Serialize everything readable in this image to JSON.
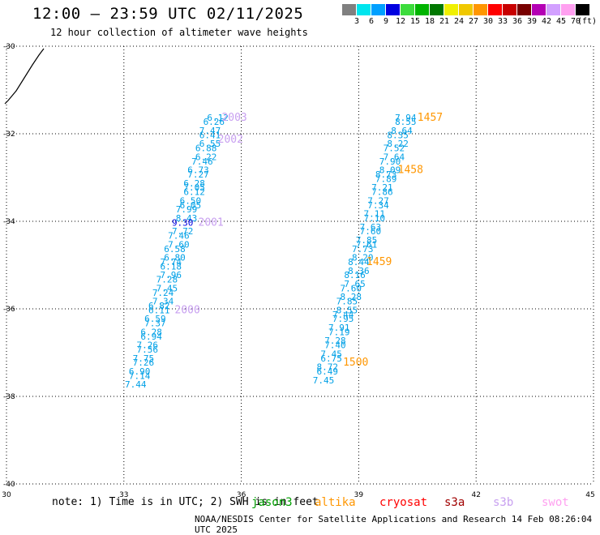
{
  "header": {
    "title": "12:00 – 23:59 UTC 02/11/2025",
    "subtitle": "12 hour collection of altimeter wave heights"
  },
  "scale": {
    "labels": [
      "3",
      "6",
      "9",
      "12",
      "15",
      "18",
      "21",
      "24",
      "27",
      "30",
      "33",
      "36",
      "39",
      "42",
      "45",
      "70"
    ],
    "unit": "(ft)",
    "colors": [
      "#808080",
      "#00e5ee",
      "#00a0ff",
      "#0000e0",
      "#3cdc3c",
      "#00b400",
      "#007800",
      "#f0f000",
      "#f0c800",
      "#ff9600",
      "#ff0000",
      "#c80000",
      "#780000",
      "#b400b4",
      "#d2a0ff",
      "#ffa0f0",
      "#000000"
    ]
  },
  "map": {
    "x_labels": [
      "30",
      "33",
      "36",
      "39",
      "42",
      "45"
    ],
    "y_labels": [
      "-30",
      "-32",
      "-34",
      "-36",
      "-38",
      "-40"
    ],
    "lon_range": [
      30,
      45
    ],
    "lat_range": [
      -40,
      -30
    ]
  },
  "chart_data": {
    "type": "scatter",
    "track_west": {
      "color": "#00a0e6",
      "points": [
        {
          "lon": 35.4,
          "lat": -31.7,
          "value": "6.12"
        },
        {
          "lon": 35.3,
          "lat": -31.8,
          "value": "6.26"
        },
        {
          "lon": 35.2,
          "lat": -32.0,
          "value": "7.47"
        },
        {
          "lon": 35.2,
          "lat": -32.1,
          "value": "6.41"
        },
        {
          "lon": 35.2,
          "lat": -32.3,
          "value": "6.55"
        },
        {
          "lon": 35.1,
          "lat": -32.4,
          "value": "6.88"
        },
        {
          "lon": 35.1,
          "lat": -32.6,
          "value": "6.22"
        },
        {
          "lon": 35.0,
          "lat": -32.7,
          "value": "7.46"
        },
        {
          "lon": 34.9,
          "lat": -32.9,
          "value": "6.73"
        },
        {
          "lon": 34.9,
          "lat": -33.0,
          "value": "7.27"
        },
        {
          "lon": 34.8,
          "lat": -33.2,
          "value": "6.28"
        },
        {
          "lon": 34.8,
          "lat": -33.3,
          "value": "7.05"
        },
        {
          "lon": 34.8,
          "lat": -33.4,
          "value": "6.12"
        },
        {
          "lon": 34.7,
          "lat": -33.6,
          "value": "6.50"
        },
        {
          "lon": 34.7,
          "lat": -33.7,
          "value": "6.05"
        },
        {
          "lon": 34.6,
          "lat": -33.8,
          "value": "7.99"
        },
        {
          "lon": 34.6,
          "lat": -34.0,
          "value": "8.43"
        },
        {
          "lon": 34.5,
          "lat": -34.1,
          "value": "9.30"
        },
        {
          "lon": 34.5,
          "lat": -34.3,
          "value": "7.72"
        },
        {
          "lon": 34.4,
          "lat": -34.4,
          "value": "7.46"
        },
        {
          "lon": 34.4,
          "lat": -34.6,
          "value": "7.60"
        },
        {
          "lon": 34.3,
          "lat": -34.7,
          "value": "6.58"
        },
        {
          "lon": 34.3,
          "lat": -34.9,
          "value": "6.80"
        },
        {
          "lon": 34.2,
          "lat": -35.0,
          "value": "7.74"
        },
        {
          "lon": 34.2,
          "lat": -35.1,
          "value": "6.18"
        },
        {
          "lon": 34.2,
          "lat": -35.3,
          "value": "7.96"
        },
        {
          "lon": 34.1,
          "lat": -35.4,
          "value": "7.28"
        },
        {
          "lon": 34.1,
          "lat": -35.6,
          "value": "7.45"
        },
        {
          "lon": 34.0,
          "lat": -35.7,
          "value": "7.24"
        },
        {
          "lon": 34.0,
          "lat": -35.9,
          "value": "7.34"
        },
        {
          "lon": 33.9,
          "lat": -36.0,
          "value": "6.82"
        },
        {
          "lon": 33.9,
          "lat": -36.1,
          "value": "6.11"
        },
        {
          "lon": 33.8,
          "lat": -36.3,
          "value": "6.59"
        },
        {
          "lon": 33.8,
          "lat": -36.4,
          "value": "7.37"
        },
        {
          "lon": 33.7,
          "lat": -36.6,
          "value": "6.28"
        },
        {
          "lon": 33.7,
          "lat": -36.7,
          "value": "6.94"
        },
        {
          "lon": 33.6,
          "lat": -36.9,
          "value": "7.26"
        },
        {
          "lon": 33.6,
          "lat": -37.0,
          "value": "7.56"
        },
        {
          "lon": 33.5,
          "lat": -37.2,
          "value": "7.75"
        },
        {
          "lon": 33.5,
          "lat": -37.3,
          "value": "7.26"
        },
        {
          "lon": 33.4,
          "lat": -37.5,
          "value": "6.90"
        },
        {
          "lon": 33.4,
          "lat": -37.6,
          "value": "7.14"
        },
        {
          "lon": 33.3,
          "lat": -37.8,
          "value": "7.44"
        }
      ]
    },
    "track_east": {
      "color": "#00a0e6",
      "points": [
        {
          "lon": 40.2,
          "lat": -31.7,
          "value": "7.94"
        },
        {
          "lon": 40.2,
          "lat": -31.8,
          "value": "8.55"
        },
        {
          "lon": 40.1,
          "lat": -32.0,
          "value": "8.64"
        },
        {
          "lon": 40.0,
          "lat": -32.1,
          "value": "8.35"
        },
        {
          "lon": 40.0,
          "lat": -32.3,
          "value": "8.22"
        },
        {
          "lon": 39.9,
          "lat": -32.4,
          "value": "7.52"
        },
        {
          "lon": 39.9,
          "lat": -32.6,
          "value": "7.64"
        },
        {
          "lon": 39.8,
          "lat": -32.7,
          "value": "7.90"
        },
        {
          "lon": 39.8,
          "lat": -32.9,
          "value": "8.09"
        },
        {
          "lon": 39.7,
          "lat": -33.0,
          "value": "8.73"
        },
        {
          "lon": 39.7,
          "lat": -33.1,
          "value": "7.89"
        },
        {
          "lon": 39.6,
          "lat": -33.3,
          "value": "7.21"
        },
        {
          "lon": 39.6,
          "lat": -33.4,
          "value": "7.86"
        },
        {
          "lon": 39.5,
          "lat": -33.6,
          "value": "7.27"
        },
        {
          "lon": 39.5,
          "lat": -33.7,
          "value": "7.34"
        },
        {
          "lon": 39.4,
          "lat": -33.9,
          "value": "7.11"
        },
        {
          "lon": 39.4,
          "lat": -34.0,
          "value": "7.10"
        },
        {
          "lon": 39.3,
          "lat": -34.2,
          "value": "7.63"
        },
        {
          "lon": 39.3,
          "lat": -34.3,
          "value": "7.60"
        },
        {
          "lon": 39.2,
          "lat": -34.5,
          "value": "7.85"
        },
        {
          "lon": 39.2,
          "lat": -34.6,
          "value": "7.61"
        },
        {
          "lon": 39.1,
          "lat": -34.7,
          "value": "7.73"
        },
        {
          "lon": 39.1,
          "lat": -34.9,
          "value": "8.20"
        },
        {
          "lon": 39.0,
          "lat": -35.0,
          "value": "8.44"
        },
        {
          "lon": 39.0,
          "lat": -35.2,
          "value": "8.36"
        },
        {
          "lon": 38.9,
          "lat": -35.3,
          "value": "8.16"
        },
        {
          "lon": 38.9,
          "lat": -35.5,
          "value": "7.65"
        },
        {
          "lon": 38.8,
          "lat": -35.6,
          "value": "7.60"
        },
        {
          "lon": 38.8,
          "lat": -35.8,
          "value": "8.28"
        },
        {
          "lon": 38.7,
          "lat": -35.9,
          "value": "7.85"
        },
        {
          "lon": 38.7,
          "lat": -36.1,
          "value": "8.55"
        },
        {
          "lon": 38.6,
          "lat": -36.2,
          "value": "7.44"
        },
        {
          "lon": 38.6,
          "lat": -36.3,
          "value": "7.95"
        },
        {
          "lon": 38.5,
          "lat": -36.5,
          "value": "7.91"
        },
        {
          "lon": 38.5,
          "lat": -36.6,
          "value": "7.19"
        },
        {
          "lon": 38.4,
          "lat": -36.8,
          "value": "7.28"
        },
        {
          "lon": 38.4,
          "lat": -36.9,
          "value": "7.40"
        },
        {
          "lon": 38.3,
          "lat": -37.1,
          "value": "7.45"
        },
        {
          "lon": 38.3,
          "lat": -37.2,
          "value": "6.75"
        },
        {
          "lon": 38.2,
          "lat": -37.4,
          "value": "8.72"
        },
        {
          "lon": 38.2,
          "lat": -37.5,
          "value": "6.49"
        },
        {
          "lon": 38.1,
          "lat": -37.7,
          "value": "7.45"
        }
      ]
    },
    "time_labels": [
      {
        "text": "2003",
        "color": "#c8a0f0",
        "lon": 35.5,
        "lat": -31.7
      },
      {
        "text": "2002",
        "color": "#c8a0f0",
        "lon": 35.4,
        "lat": -32.2
      },
      {
        "text": "2001",
        "color": "#c8a0f0",
        "lon": 34.9,
        "lat": -34.1
      },
      {
        "text": "2000",
        "color": "#c8a0f0",
        "lon": 34.3,
        "lat": -36.1
      },
      {
        "text": "1457",
        "color": "#ff9600",
        "lon": 40.5,
        "lat": -31.7
      },
      {
        "text": "1458",
        "color": "#ff9600",
        "lon": 40.0,
        "lat": -32.9
      },
      {
        "text": "1459",
        "color": "#ff9600",
        "lon": 39.2,
        "lat": -35.0
      },
      {
        "text": "1500",
        "color": "#ff9600",
        "lon": 38.6,
        "lat": -37.3
      }
    ]
  },
  "footer": {
    "note": "note:  1) Time is in UTC; 2) SWH is in feet",
    "satellites": [
      {
        "name": "jason3",
        "color": "#00a000"
      },
      {
        "name": "altika",
        "color": "#ff9600"
      },
      {
        "name": "cryosat",
        "color": "#ff0000"
      },
      {
        "name": "s3a",
        "color": "#a00000"
      },
      {
        "name": "s3b",
        "color": "#c8a0f0"
      },
      {
        "name": "swot",
        "color": "#ffa0f0"
      }
    ],
    "credit": "NOAA/NESDIS Center for Satellite Applications and Research    14 Feb 08:26:04 UTC 2025"
  }
}
